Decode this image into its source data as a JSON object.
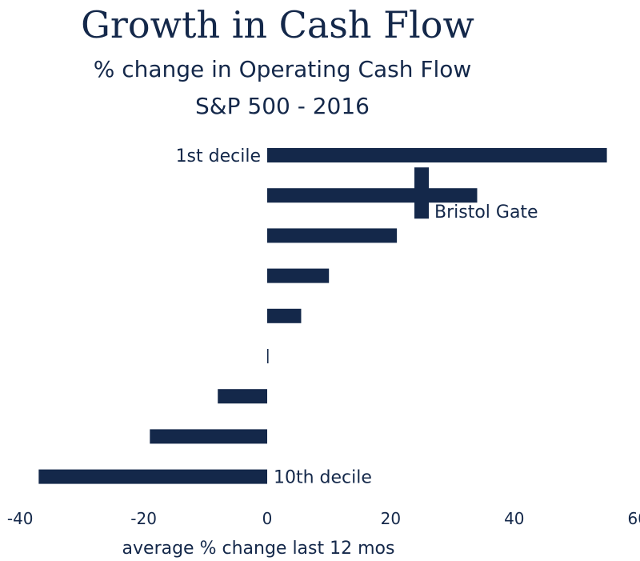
{
  "chart_data": {
    "type": "bar",
    "orientation": "horizontal",
    "title": "Growth in Cash Flow",
    "subtitle": [
      "% change in Operating Cash Flow",
      "S&P 500 - 2016"
    ],
    "xlabel": "average % change last 12 mos",
    "xlim": [
      -40,
      60
    ],
    "xticks": [
      -40,
      -20,
      0,
      20,
      40,
      60
    ],
    "categories": [
      "1st decile",
      "",
      "",
      "",
      "",
      "",
      "",
      "",
      "10th decile"
    ],
    "values": [
      55,
      34,
      21,
      10,
      5.5,
      0.2,
      -8,
      -19,
      -37
    ],
    "marker": {
      "label": "Bristol Gate",
      "value": 25,
      "row": 1
    },
    "grid": false,
    "legend": "none"
  },
  "colors": {
    "bar": "#14284a",
    "text": "#14284a"
  }
}
